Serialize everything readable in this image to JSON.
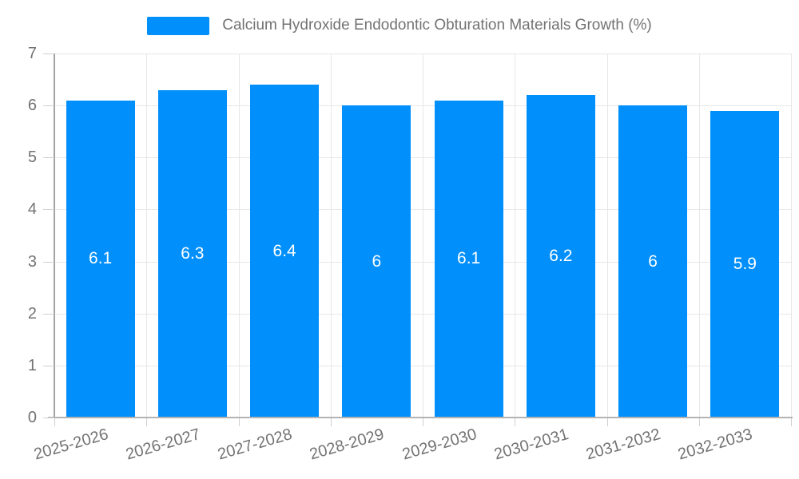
{
  "legend": {
    "label": "Calcium Hydroxide Endodontic Obturation Materials Growth (%)"
  },
  "colors": {
    "bar": "#008FFB",
    "text": "#737373",
    "value_label": "#ffffff",
    "grid": "#e7e7e7",
    "tick": "#d0d0d0",
    "axis_x": "#b3b3b3",
    "axis_y": "#a3a3a3"
  },
  "chart_data": {
    "type": "bar",
    "title": "Calcium Hydroxide Endodontic Obturation Materials Growth (%)",
    "categories": [
      "2025-2026",
      "2026-2027",
      "2027-2028",
      "2028-2029",
      "2029-2030",
      "2030-2031",
      "2031-2032",
      "2032-2033"
    ],
    "values": [
      6.1,
      6.3,
      6.4,
      6,
      6.1,
      6.2,
      6,
      5.9
    ],
    "bar_labels": [
      "6.1",
      "6.3",
      "6.4",
      "6",
      "6.1",
      "6.2",
      "6",
      "5.9"
    ],
    "xlabel": "",
    "ylabel": "",
    "ylim": [
      0,
      7
    ],
    "yticks": [
      0,
      1,
      2,
      3,
      4,
      5,
      6,
      7
    ],
    "grid": true,
    "legend_position": "top"
  }
}
